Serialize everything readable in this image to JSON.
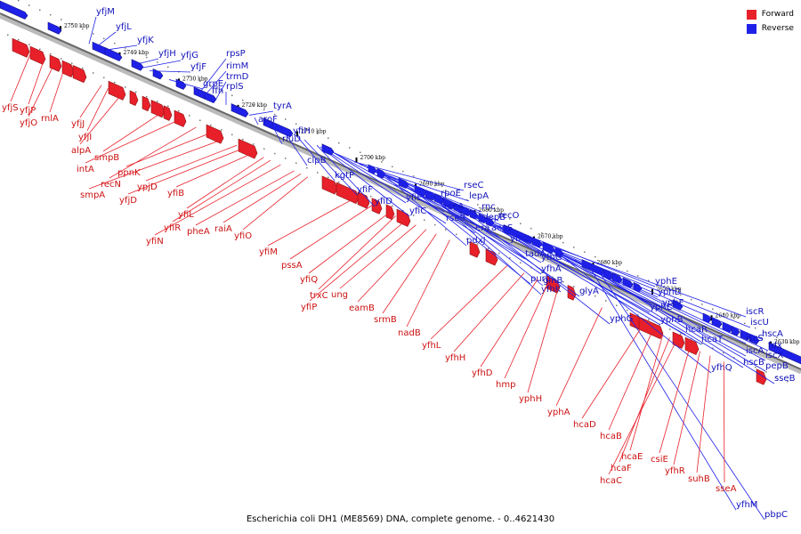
{
  "caption": "Escherichia coli DH1 (ME8569) DNA, complete genome. - 0..4621430",
  "colors": {
    "forward": "#e8202a",
    "reverse": "#1f21e8",
    "forward_text": "#cc1111",
    "reverse_text": "#1111bb"
  },
  "legend": [
    {
      "label": "Forward",
      "color": "#e8202a"
    },
    {
      "label": "Reverse",
      "color": "#1f21e8"
    }
  ],
  "ticks": [
    "2750 kbp",
    "2740 kbp",
    "2730 kbp",
    "2720 kbp",
    "2710 kbp",
    "2700 kbp",
    "2690 kbp",
    "2680 kbp",
    "2670 kbp",
    "2660 kbp",
    "2650 kbp",
    "2640 kbp",
    "2630 kbp"
  ],
  "forward_genes": [
    "yfjS",
    "yfjP",
    "yfjO",
    "rnlA",
    "yfjJ",
    "yfjI",
    "alpA",
    "smpB",
    "intA",
    "recN",
    "ppnK",
    "smpA",
    "ypjD",
    "yfjD",
    "yfiB",
    "yfiL",
    "yfiR",
    "yfiN",
    "pheA",
    "raiA",
    "yfiO",
    "yfiM",
    "pssA",
    "yfiQ",
    "trxC",
    "yfiP",
    "ung",
    "eamB",
    "srmB",
    "nadB",
    "yfhL",
    "yfhH",
    "yfhD",
    "hmp",
    "yphH",
    "yphA",
    "hcaD",
    "hcaB",
    "hcaE",
    "hcaF",
    "hcaC",
    "csiE",
    "yfhR",
    "suhB",
    "sseA"
  ],
  "reverse_genes": [
    "yfjM",
    "yfjL",
    "yfjK",
    "yfjH",
    "yfjG",
    "yfjF",
    "grpE",
    "ffh",
    "rpsP",
    "rimM",
    "trmD",
    "rplS",
    "tyrA",
    "aroF",
    "yfiH",
    "rluD",
    "clpB",
    "kgtP",
    "yfiF",
    "yfiD",
    "yfiE",
    "yfiC",
    "rpoE",
    "rseA",
    "rseB",
    "rseC",
    "lepA",
    "rnc",
    "lepB",
    "recO",
    "era",
    "acpS",
    "pdxJ",
    "yfhB",
    "tadA",
    "purL",
    "yfhG",
    "yfhA",
    "glnB",
    "yfhK",
    "glyA",
    "yphE",
    "yphD",
    "yphF",
    "yphC",
    "yphG",
    "yphB",
    "hcaR",
    "hcaT",
    "iscR",
    "iscU",
    "hscA",
    "iscS",
    "iscA",
    "fdx",
    "hscB",
    "iscX",
    "yfhQ",
    "pepB",
    "sseB",
    "yfhM",
    "pbpC"
  ]
}
